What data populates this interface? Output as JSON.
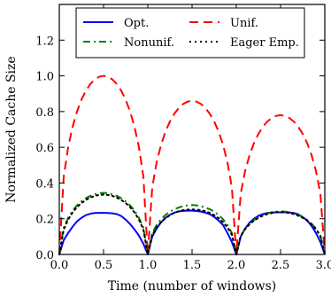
{
  "chart_data": {
    "type": "line",
    "xlabel": "Time (number of windows)",
    "ylabel": "Normalized Cache Size",
    "xlim": [
      0.0,
      3.0
    ],
    "ylim": [
      0.0,
      1.4
    ],
    "x_ticks": [
      "0.0",
      "0.5",
      "1.0",
      "1.5",
      "2.0",
      "2.5",
      "3.0"
    ],
    "y_ticks": [
      "0.0",
      "0.2",
      "0.4",
      "0.6",
      "0.8",
      "1.0",
      "1.2"
    ],
    "grid": false,
    "legend_position": "top",
    "legend_columns": 2,
    "series": [
      {
        "name": "Opt.",
        "color": "#0000ff",
        "style": "solid",
        "x": [
          0,
          0.05,
          0.1,
          0.15,
          0.2,
          0.25,
          0.3,
          0.35,
          0.4,
          0.45,
          0.5,
          0.55,
          0.6,
          0.65,
          0.7,
          0.75,
          0.8,
          0.85,
          0.9,
          0.95,
          1.0,
          1.05,
          1.1,
          1.15,
          1.2,
          1.25,
          1.3,
          1.35,
          1.4,
          1.45,
          1.5,
          1.55,
          1.6,
          1.65,
          1.7,
          1.75,
          1.8,
          1.85,
          1.9,
          1.95,
          2.0,
          2.05,
          2.1,
          2.15,
          2.2,
          2.25,
          2.3,
          2.35,
          2.4,
          2.45,
          2.5,
          2.55,
          2.6,
          2.65,
          2.7,
          2.75,
          2.8,
          2.85,
          2.9,
          2.95,
          3.0
        ],
        "y": [
          0.0,
          0.08,
          0.12,
          0.155,
          0.185,
          0.205,
          0.22,
          0.228,
          0.232,
          0.233,
          0.233,
          0.232,
          0.23,
          0.226,
          0.215,
          0.195,
          0.17,
          0.14,
          0.105,
          0.06,
          0.0,
          0.1,
          0.145,
          0.18,
          0.205,
          0.222,
          0.234,
          0.241,
          0.244,
          0.245,
          0.245,
          0.243,
          0.24,
          0.234,
          0.225,
          0.21,
          0.19,
          0.165,
          0.12,
          0.07,
          0.0,
          0.1,
          0.145,
          0.178,
          0.2,
          0.216,
          0.226,
          0.232,
          0.235,
          0.236,
          0.236,
          0.236,
          0.235,
          0.232,
          0.225,
          0.21,
          0.19,
          0.16,
          0.12,
          0.07,
          0.0
        ]
      },
      {
        "name": "Unif.",
        "color": "#ff0000",
        "style": "dashed",
        "x": [
          0,
          0.05,
          0.1,
          0.15,
          0.2,
          0.25,
          0.3,
          0.35,
          0.4,
          0.45,
          0.5,
          0.55,
          0.6,
          0.65,
          0.7,
          0.75,
          0.8,
          0.85,
          0.9,
          0.95,
          1.0,
          1.05,
          1.1,
          1.15,
          1.2,
          1.25,
          1.3,
          1.35,
          1.4,
          1.45,
          1.5,
          1.55,
          1.6,
          1.65,
          1.7,
          1.75,
          1.8,
          1.85,
          1.9,
          1.95,
          2.0,
          2.05,
          2.1,
          2.15,
          2.2,
          2.25,
          2.3,
          2.35,
          2.4,
          2.45,
          2.5,
          2.55,
          2.6,
          2.65,
          2.7,
          2.75,
          2.8,
          2.85,
          2.9,
          2.95,
          3.0
        ],
        "y": [
          0.0,
          0.436,
          0.6,
          0.714,
          0.8,
          0.866,
          0.917,
          0.954,
          0.98,
          0.995,
          1.0,
          0.995,
          0.98,
          0.954,
          0.917,
          0.866,
          0.8,
          0.714,
          0.6,
          0.436,
          0.0,
          0.375,
          0.516,
          0.614,
          0.688,
          0.745,
          0.788,
          0.82,
          0.843,
          0.856,
          0.86,
          0.856,
          0.843,
          0.82,
          0.788,
          0.745,
          0.688,
          0.614,
          0.516,
          0.375,
          0.0,
          0.34,
          0.468,
          0.557,
          0.624,
          0.675,
          0.715,
          0.744,
          0.764,
          0.776,
          0.78,
          0.776,
          0.764,
          0.744,
          0.715,
          0.675,
          0.624,
          0.557,
          0.468,
          0.34,
          0.0
        ]
      },
      {
        "name": "Nonunif.",
        "color": "#008000",
        "style": "dashdot",
        "x": [
          0,
          0.05,
          0.1,
          0.15,
          0.2,
          0.25,
          0.3,
          0.35,
          0.4,
          0.45,
          0.5,
          0.55,
          0.6,
          0.65,
          0.7,
          0.75,
          0.8,
          0.85,
          0.9,
          0.95,
          1.0,
          1.05,
          1.1,
          1.15,
          1.2,
          1.25,
          1.3,
          1.35,
          1.4,
          1.45,
          1.5,
          1.55,
          1.6,
          1.65,
          1.7,
          1.75,
          1.8,
          1.85,
          1.9,
          1.95,
          2.0,
          2.05,
          2.1,
          2.15,
          2.2,
          2.25,
          2.3,
          2.35,
          2.4,
          2.45,
          2.5,
          2.55,
          2.6,
          2.65,
          2.7,
          2.75,
          2.8,
          2.85,
          2.9,
          2.95,
          3.0
        ],
        "y": [
          0.0,
          0.15,
          0.205,
          0.245,
          0.275,
          0.297,
          0.315,
          0.328,
          0.337,
          0.343,
          0.345,
          0.343,
          0.337,
          0.328,
          0.315,
          0.297,
          0.275,
          0.245,
          0.205,
          0.15,
          0.0,
          0.12,
          0.166,
          0.197,
          0.221,
          0.24,
          0.253,
          0.263,
          0.27,
          0.275,
          0.277,
          0.275,
          0.27,
          0.263,
          0.253,
          0.24,
          0.221,
          0.197,
          0.166,
          0.12,
          0.0,
          0.105,
          0.145,
          0.172,
          0.193,
          0.209,
          0.221,
          0.23,
          0.236,
          0.24,
          0.241,
          0.24,
          0.236,
          0.23,
          0.221,
          0.209,
          0.193,
          0.172,
          0.145,
          0.105,
          0.0
        ]
      },
      {
        "name": "Eager Emp.",
        "color": "#000000",
        "style": "dotted",
        "x": [
          0,
          0.05,
          0.1,
          0.15,
          0.2,
          0.25,
          0.3,
          0.35,
          0.4,
          0.45,
          0.5,
          0.55,
          0.6,
          0.65,
          0.7,
          0.75,
          0.8,
          0.85,
          0.9,
          0.95,
          1.0,
          1.05,
          1.1,
          1.15,
          1.2,
          1.25,
          1.3,
          1.35,
          1.4,
          1.45,
          1.5,
          1.55,
          1.6,
          1.65,
          1.7,
          1.75,
          1.8,
          1.85,
          1.9,
          1.95,
          2.0,
          2.05,
          2.1,
          2.15,
          2.2,
          2.25,
          2.3,
          2.35,
          2.4,
          2.45,
          2.5,
          2.55,
          2.6,
          2.65,
          2.7,
          2.75,
          2.8,
          2.85,
          2.9,
          2.95,
          3.0
        ],
        "y": [
          0.0,
          0.14,
          0.195,
          0.235,
          0.265,
          0.288,
          0.305,
          0.318,
          0.328,
          0.333,
          0.335,
          0.333,
          0.328,
          0.318,
          0.305,
          0.288,
          0.265,
          0.235,
          0.195,
          0.14,
          0.0,
          0.11,
          0.152,
          0.181,
          0.203,
          0.22,
          0.233,
          0.242,
          0.248,
          0.251,
          0.252,
          0.251,
          0.248,
          0.242,
          0.233,
          0.22,
          0.203,
          0.181,
          0.152,
          0.11,
          0.0,
          0.103,
          0.142,
          0.169,
          0.19,
          0.205,
          0.217,
          0.226,
          0.232,
          0.236,
          0.237,
          0.236,
          0.232,
          0.226,
          0.217,
          0.205,
          0.19,
          0.169,
          0.142,
          0.103,
          0.0
        ]
      }
    ]
  }
}
